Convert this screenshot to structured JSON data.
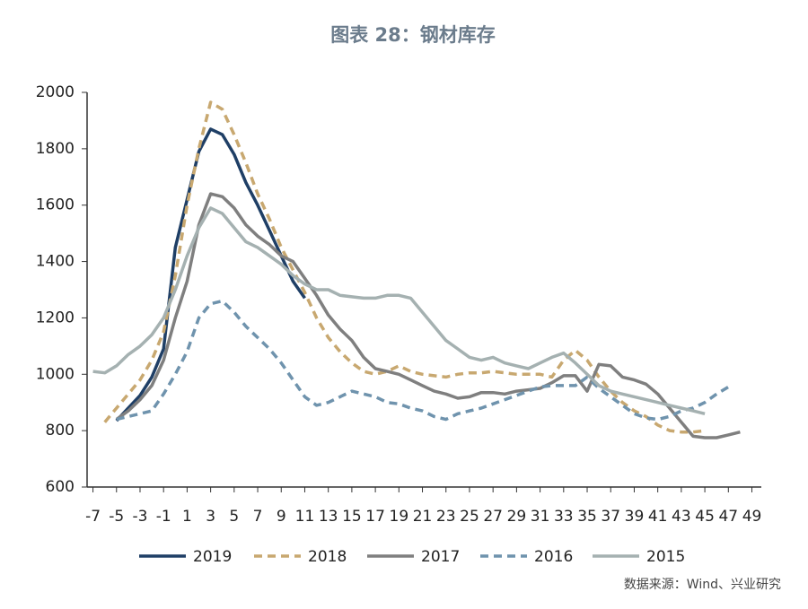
{
  "chart_data": {
    "type": "line",
    "title": "图表 28：钢材库存",
    "source": "数据来源：Wind、兴业研究",
    "x": [
      -7,
      -6,
      -5,
      -4,
      -3,
      -2,
      -1,
      0,
      1,
      2,
      3,
      4,
      5,
      6,
      7,
      8,
      9,
      10,
      11,
      12,
      13,
      14,
      15,
      16,
      17,
      18,
      19,
      20,
      21,
      22,
      23,
      24,
      25,
      26,
      27,
      28,
      29,
      30,
      31,
      32,
      33,
      34,
      35,
      36,
      37,
      38,
      39,
      40,
      41,
      42,
      43,
      44,
      45,
      46,
      47,
      48
    ],
    "xlim": [
      -7.5,
      49.8
    ],
    "xticks": [
      -7,
      -5,
      -3,
      -1,
      1,
      3,
      5,
      7,
      9,
      11,
      13,
      15,
      17,
      19,
      21,
      23,
      25,
      27,
      29,
      31,
      33,
      35,
      37,
      39,
      41,
      43,
      45,
      47,
      49
    ],
    "ylim": [
      600,
      2000
    ],
    "yticks": [
      600,
      800,
      1000,
      1200,
      1400,
      1600,
      1800,
      2000
    ],
    "series": [
      {
        "name": "2019",
        "color": "#1f3f66",
        "dashed": false,
        "values": [
          null,
          null,
          835,
          880,
          925,
          990,
          1090,
          1450,
          1620,
          1790,
          1870,
          1850,
          1780,
          1680,
          1600,
          1510,
          1420,
          1330,
          1270,
          null,
          null,
          null,
          null,
          null,
          null,
          null,
          null,
          null,
          null,
          null,
          null,
          null,
          null,
          null,
          null,
          null,
          null,
          null,
          null,
          null,
          null,
          null,
          null,
          null,
          null,
          null,
          null,
          null,
          null,
          null,
          null,
          null,
          null,
          null,
          null,
          null
        ]
      },
      {
        "name": "2018",
        "color": "#c8a870",
        "dashed": true,
        "values": [
          null,
          830,
          880,
          930,
          980,
          1050,
          1150,
          1350,
          1600,
          1800,
          1965,
          1940,
          1850,
          1750,
          1640,
          1550,
          1450,
          1370,
          1290,
          1200,
          1130,
          1080,
          1040,
          1010,
          1000,
          1010,
          1030,
          1010,
          1000,
          995,
          990,
          1000,
          1005,
          1005,
          1010,
          1005,
          1000,
          1000,
          1000,
          990,
          1050,
          1085,
          1050,
          990,
          940,
          900,
          870,
          850,
          820,
          800,
          795,
          795,
          800,
          null,
          null,
          null
        ]
      },
      {
        "name": "2017",
        "color": "#7f7f7f",
        "dashed": false,
        "values": [
          null,
          null,
          840,
          870,
          910,
          960,
          1050,
          1200,
          1330,
          1530,
          1640,
          1630,
          1590,
          1530,
          1490,
          1460,
          1420,
          1400,
          1340,
          1280,
          1210,
          1160,
          1120,
          1060,
          1020,
          1010,
          1000,
          980,
          960,
          940,
          930,
          915,
          920,
          935,
          935,
          930,
          940,
          945,
          950,
          970,
          995,
          995,
          940,
          1035,
          1030,
          990,
          980,
          965,
          930,
          880,
          830,
          780,
          775,
          775,
          785,
          795
        ]
      },
      {
        "name": "2016",
        "color": "#6f93ad",
        "dashed": true,
        "values": [
          null,
          null,
          840,
          850,
          860,
          870,
          930,
          1000,
          1080,
          1200,
          1250,
          1260,
          1220,
          1170,
          1130,
          1090,
          1040,
          980,
          920,
          890,
          900,
          920,
          940,
          930,
          920,
          900,
          895,
          880,
          870,
          850,
          840,
          860,
          870,
          880,
          895,
          910,
          925,
          940,
          955,
          960,
          960,
          960,
          990,
          950,
          920,
          890,
          860,
          845,
          840,
          850,
          870,
          880,
          900,
          930,
          955,
          null
        ]
      },
      {
        "name": "2015",
        "color": "#a5b1b1",
        "dashed": false,
        "values": [
          1010,
          1005,
          1030,
          1070,
          1100,
          1140,
          1200,
          1300,
          1420,
          1520,
          1590,
          1570,
          1520,
          1470,
          1450,
          1420,
          1390,
          1350,
          1320,
          1300,
          1300,
          1280,
          1275,
          1270,
          1270,
          1280,
          1280,
          1270,
          1220,
          1170,
          1120,
          1090,
          1060,
          1050,
          1060,
          1040,
          1030,
          1020,
          1040,
          1060,
          1075,
          1040,
          1000,
          960,
          940,
          930,
          920,
          910,
          900,
          890,
          880,
          870,
          860,
          null,
          null,
          null
        ]
      }
    ]
  }
}
